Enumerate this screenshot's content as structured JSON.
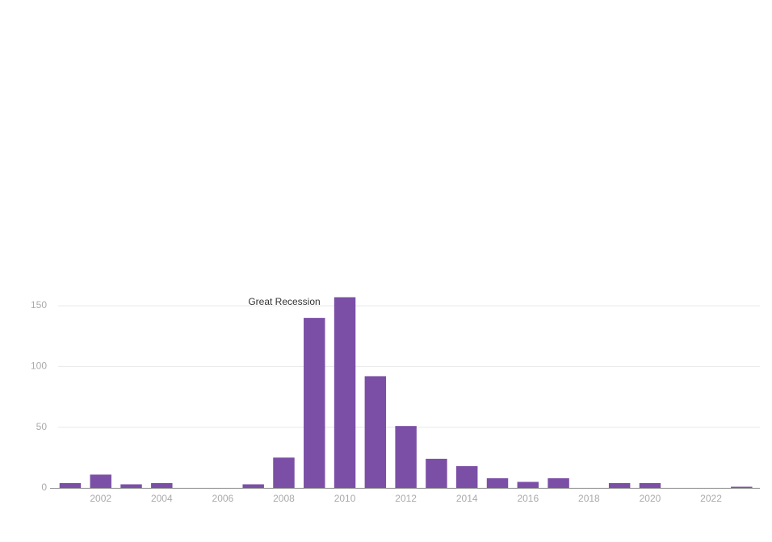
{
  "chart_data": {
    "type": "bar",
    "annotation": "Great Recession",
    "x": [
      2001,
      2002,
      2003,
      2004,
      2005,
      2006,
      2007,
      2008,
      2009,
      2010,
      2011,
      2012,
      2013,
      2014,
      2015,
      2016,
      2017,
      2018,
      2019,
      2020,
      2021,
      2022,
      2023
    ],
    "values": [
      4,
      11,
      3,
      4,
      0,
      0,
      3,
      25,
      140,
      157,
      92,
      51,
      24,
      18,
      8,
      5,
      8,
      0,
      4,
      4,
      0,
      0,
      1
    ],
    "color": "#7b4fa6",
    "xlim": [
      2000.34,
      2023.6
    ],
    "xticks": [
      2002,
      2004,
      2006,
      2008,
      2010,
      2012,
      2014,
      2016,
      2018,
      2020,
      2022
    ],
    "ylim": [
      0,
      160
    ],
    "yticks": [
      0,
      50,
      100,
      150
    ],
    "grid": true
  }
}
